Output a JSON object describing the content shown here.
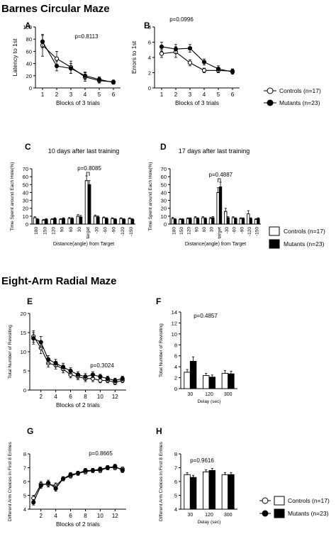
{
  "sections": {
    "barnes": "Barnes Circular Maze",
    "radial": "Eight-Arm Radial Maze"
  },
  "legends": {
    "top": [
      {
        "label": "Controls (n=17)",
        "marker": "open-circle"
      },
      {
        "label": "Mutants (n=23)",
        "marker": "filled-circle"
      }
    ],
    "middle": [
      {
        "label": "Controls (n=17)",
        "marker": "open-square"
      },
      {
        "label": "Mutants (n=23)",
        "marker": "filled-square"
      }
    ],
    "bottom": [
      {
        "label": "Controls (n=17)",
        "marker": "open-circle-square"
      },
      {
        "label": "Mutants (n=23)",
        "marker": "filled-circle-square"
      }
    ]
  },
  "colors": {
    "controls": "#ffffff",
    "mutants": "#000000",
    "stroke": "#000000"
  },
  "chart_data": [
    {
      "panel": "A",
      "type": "line",
      "pvalue": "p=0.8113",
      "xlabel": "Blocks of 3 trials",
      "ylabel": "Latency to 1st",
      "x": [
        1,
        2,
        3,
        4,
        5,
        6
      ],
      "xticks": [
        "1",
        "2",
        "3",
        "4",
        "5",
        "6"
      ],
      "yticks": [
        "0",
        "20",
        "40",
        "60",
        "80",
        "100"
      ],
      "xlim": [
        0.5,
        6.5
      ],
      "ylim": [
        0,
        100
      ],
      "series": [
        {
          "values": [
            70,
            48,
            34,
            18,
            12,
            10
          ],
          "err": [
            18,
            12,
            10,
            7,
            4,
            3
          ]
        },
        {
          "values": [
            76,
            36,
            32,
            20,
            14,
            9
          ],
          "err": [
            10,
            8,
            8,
            6,
            4,
            2
          ]
        }
      ]
    },
    {
      "panel": "B",
      "type": "line",
      "pvalue": "p=0.0996",
      "xlabel": "Blocks of 3 trials",
      "ylabel": "Errors to 1st",
      "x": [
        1,
        2,
        3,
        4,
        5,
        6
      ],
      "xticks": [
        "1",
        "2",
        "3",
        "4",
        "5",
        "6"
      ],
      "yticks": [
        "0",
        "2",
        "4",
        "6",
        "8"
      ],
      "xlim": [
        0.5,
        6.5
      ],
      "ylim": [
        0,
        8
      ],
      "series": [
        {
          "values": [
            4.5,
            4.7,
            3.3,
            2.3,
            2.3,
            2.2
          ],
          "err": [
            0.5,
            0.7,
            0.4,
            0.3,
            0.3,
            0.3
          ]
        },
        {
          "values": [
            5.4,
            5.1,
            5.2,
            3.4,
            2.5,
            2.1
          ],
          "err": [
            0.6,
            0.6,
            0.5,
            0.4,
            0.4,
            0.3
          ]
        }
      ]
    },
    {
      "panel": "C",
      "type": "bar",
      "title": "10 days after last training",
      "pvalue": "p=0.8085",
      "xlabel": "Distance(angle) from Target",
      "ylabel": "Time Spent around Each Hole(%)",
      "categories": [
        "180",
        "150",
        "120",
        "90",
        "60",
        "30",
        "target",
        "-30",
        "-60",
        "-90",
        "-120",
        "-150"
      ],
      "yticks": [
        "0",
        "10",
        "20",
        "30",
        "40",
        "50",
        "60",
        "70"
      ],
      "ylim": [
        0,
        70
      ],
      "series": [
        {
          "values": [
            8,
            5,
            6,
            6,
            7,
            10,
            55,
            10,
            8,
            7,
            7,
            7
          ],
          "err": [
            1.5,
            1,
            1,
            1,
            1.5,
            2,
            6,
            1.5,
            1,
            1,
            1,
            1
          ]
        },
        {
          "values": [
            6,
            6,
            7,
            7,
            7,
            9,
            50,
            9,
            7,
            6,
            6,
            6
          ],
          "err": [
            1,
            1,
            1,
            1,
            1,
            2,
            5,
            1.5,
            1,
            1,
            1,
            1
          ]
        }
      ]
    },
    {
      "panel": "D",
      "type": "bar",
      "title": "17 days after last training",
      "pvalue": "p=0.4887",
      "xlabel": "Distance(angle) from Target",
      "ylabel": "Time Spent around Each Hole(%)",
      "categories": [
        "180",
        "150",
        "120",
        "90",
        "60",
        "30",
        "target",
        "-30",
        "-60",
        "-90",
        "-120",
        "-150"
      ],
      "yticks": [
        "0",
        "10",
        "20",
        "30",
        "40",
        "50",
        "60",
        "70"
      ],
      "ylim": [
        0,
        70
      ],
      "series": [
        {
          "values": [
            7,
            6,
            7,
            8,
            8,
            7,
            40,
            16,
            8,
            7,
            13,
            6
          ],
          "err": [
            1.5,
            1,
            1,
            1.5,
            1.5,
            1.5,
            6,
            4,
            1.5,
            1,
            4,
            1
          ]
        },
        {
          "values": [
            6,
            6,
            7,
            7,
            7,
            8,
            47,
            8,
            7,
            7,
            7,
            7
          ],
          "err": [
            1,
            1,
            1,
            1,
            1,
            1.5,
            6,
            1.5,
            1,
            1,
            1,
            1
          ]
        }
      ]
    },
    {
      "panel": "E",
      "type": "line",
      "pvalue": "p=0.3024",
      "xlabel": "Blocks of 2 trials",
      "ylabel": "Total  Number of Revisiting",
      "x": [
        1,
        2,
        3,
        4,
        5,
        6,
        7,
        8,
        9,
        10,
        11,
        12,
        13
      ],
      "xticks": [
        "2",
        "4",
        "6",
        "8",
        "10",
        "12"
      ],
      "xtick_values": [
        2,
        4,
        6,
        8,
        10,
        12
      ],
      "yticks": [
        "0",
        "5",
        "10",
        "15",
        "20"
      ],
      "xlim": [
        0.5,
        13.5
      ],
      "ylim": [
        0,
        20
      ],
      "series": [
        {
          "values": [
            14,
            11,
            7,
            6.5,
            5.5,
            4,
            3.5,
            3,
            3,
            2.5,
            2.5,
            2,
            2.5
          ],
          "err": [
            1.5,
            1.5,
            1,
            1,
            1,
            0.8,
            0.8,
            0.8,
            0.8,
            0.6,
            0.6,
            0.6,
            0.6
          ]
        },
        {
          "values": [
            13.5,
            12.5,
            8,
            7,
            6,
            5,
            4,
            3.5,
            4,
            3.5,
            3,
            2.5,
            3
          ],
          "err": [
            1.5,
            1.5,
            1,
            1,
            1,
            0.8,
            0.8,
            0.8,
            0.8,
            0.6,
            0.6,
            0.6,
            0.6
          ]
        }
      ]
    },
    {
      "panel": "F",
      "type": "bar",
      "pvalue": "p=0.4857",
      "xlabel": "Delay (sec)",
      "ylabel": "Total  Number of Revisiting",
      "categories": [
        "30",
        "120",
        "300"
      ],
      "yticks": [
        "0",
        "2",
        "4",
        "6",
        "8",
        "10",
        "12",
        "14"
      ],
      "ylim": [
        0,
        14
      ],
      "series": [
        {
          "values": [
            3,
            2.4,
            2.8
          ],
          "err": [
            0.5,
            0.4,
            0.5
          ]
        },
        {
          "values": [
            5,
            2.1,
            2.7
          ],
          "err": [
            0.8,
            0.4,
            0.5
          ]
        }
      ]
    },
    {
      "panel": "G",
      "type": "line",
      "pvalue": "p=0.8665",
      "xlabel": "Blocks of 2 trials",
      "ylabel": "Different Arm Choices in First 8 Entries",
      "x": [
        1,
        2,
        3,
        4,
        5,
        6,
        7,
        8,
        9,
        10,
        11,
        12,
        13
      ],
      "xticks": [
        "2",
        "4",
        "6",
        "8",
        "10",
        "12"
      ],
      "xtick_values": [
        2,
        4,
        6,
        8,
        10,
        12
      ],
      "yticks": [
        "4",
        "5",
        "6",
        "7",
        "8"
      ],
      "xlim": [
        0.5,
        13.5
      ],
      "ylim": [
        4,
        8
      ],
      "series": [
        {
          "values": [
            4.8,
            5.8,
            5.8,
            5.7,
            6.2,
            6.4,
            6.6,
            6.7,
            6.8,
            6.8,
            7.0,
            7.0,
            6.9
          ],
          "err": [
            0.2,
            0.2,
            0.2,
            0.2,
            0.15,
            0.15,
            0.15,
            0.15,
            0.15,
            0.15,
            0.15,
            0.15,
            0.15
          ]
        },
        {
          "values": [
            4.5,
            5.7,
            5.9,
            5.5,
            6.2,
            6.5,
            6.6,
            6.8,
            6.8,
            6.9,
            7.0,
            7.1,
            6.8
          ],
          "err": [
            0.2,
            0.2,
            0.2,
            0.2,
            0.15,
            0.15,
            0.15,
            0.15,
            0.15,
            0.15,
            0.15,
            0.15,
            0.15
          ]
        }
      ]
    },
    {
      "panel": "H",
      "type": "bar",
      "pvalue": "p=0.9616",
      "xlabel": "Delay (sec)",
      "ylabel": "Different Arm Choices in First 8 Entries",
      "categories": [
        "30",
        "120",
        "300"
      ],
      "yticks": [
        "4",
        "5",
        "6",
        "7",
        "8"
      ],
      "ylim": [
        4,
        8
      ],
      "series": [
        {
          "values": [
            6.5,
            6.7,
            6.5
          ],
          "err": [
            0.15,
            0.15,
            0.15
          ]
        },
        {
          "values": [
            6.3,
            6.8,
            6.5
          ],
          "err": [
            0.15,
            0.15,
            0.15
          ]
        }
      ]
    }
  ]
}
